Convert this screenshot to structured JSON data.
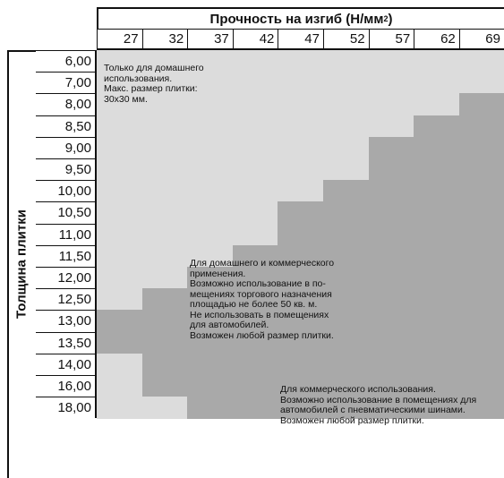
{
  "header": {
    "title": "Прочность на изгиб (Н/мм",
    "title_sup": "2",
    "title_end": ")"
  },
  "y_axis_title": "Толщина плитки",
  "columns": [
    "27",
    "32",
    "37",
    "42",
    "47",
    "52",
    "57",
    "62",
    "69"
  ],
  "rows": [
    "6,00",
    "7,00",
    "8,00",
    "8,50",
    "9,00",
    "9,50",
    "10,00",
    "10,50",
    "11,00",
    "11,50",
    "12,00",
    "12,50",
    "13,00",
    "13,50",
    "14,00",
    "16,00",
    "18,00"
  ],
  "zone_boundary_rows": [
    {
      "start_row": 12,
      "end_row": 14
    },
    {
      "start_row": 11,
      "end_row": 16
    },
    {
      "start_row": 10,
      "end_row": 17
    },
    {
      "start_row": 9,
      "end_row": 17
    },
    {
      "start_row": 7,
      "end_row": 17
    },
    {
      "start_row": 6,
      "end_row": 17
    },
    {
      "start_row": 4,
      "end_row": 17
    },
    {
      "start_row": 3,
      "end_row": 17
    },
    {
      "start_row": 2,
      "end_row": 17
    }
  ],
  "colors": {
    "home_zone": "#dcdcdc",
    "mid_zone": "#a9a9a9",
    "commercial_zone": "#dcdcdc"
  },
  "notes": {
    "home": [
      "Только для домашнего",
      "использования.",
      "Макс. размер плитки:",
      "30х30 мм."
    ],
    "mixed": [
      "Для домашнего и коммерческого",
      "применения.",
      "Возможно использование в по-",
      "мещениях торгового назначения",
      "площадью не более 50 кв. м.",
      "Не использовать в помещениях",
      "для автомобилей.",
      "Возможен любой размер плитки."
    ],
    "commercial": [
      "Для коммерческого использования.",
      "Возможно использование в помещениях для",
      "автомобилей с пневматическими шинами.",
      "Возможен любой размер плитки."
    ]
  }
}
